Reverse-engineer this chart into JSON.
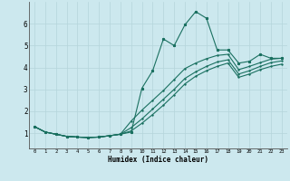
{
  "xlabel": "Humidex (Indice chaleur)",
  "background_color": "#cce8ee",
  "grid_color": "#b5d5db",
  "line_color": "#1a7060",
  "xlim": [
    -0.5,
    23.5
  ],
  "ylim": [
    0.3,
    7.0
  ],
  "xtick_vals": [
    0,
    1,
    2,
    3,
    4,
    5,
    6,
    7,
    8,
    9,
    10,
    11,
    12,
    13,
    14,
    15,
    16,
    17,
    18,
    19,
    20,
    21,
    22,
    23
  ],
  "ytick_vals": [
    1,
    2,
    3,
    4,
    5,
    6
  ],
  "line1_x": [
    0,
    1,
    2,
    3,
    4,
    5,
    6,
    7,
    8,
    9,
    10,
    11,
    12,
    13,
    14,
    15,
    16,
    17,
    18,
    19,
    20,
    21,
    22,
    23
  ],
  "line1_y": [
    1.3,
    1.05,
    0.95,
    0.85,
    0.82,
    0.8,
    0.82,
    0.88,
    0.95,
    1.05,
    3.05,
    3.85,
    5.3,
    5.0,
    5.95,
    6.55,
    6.25,
    4.8,
    4.8,
    4.2,
    4.28,
    4.6,
    4.42,
    4.42
  ],
  "line2_x": [
    0,
    1,
    2,
    3,
    4,
    5,
    6,
    7,
    8,
    9,
    10,
    11,
    12,
    13,
    14,
    15,
    16,
    17,
    18,
    19,
    20,
    21,
    22,
    23
  ],
  "line2_y": [
    1.3,
    1.05,
    0.95,
    0.85,
    0.82,
    0.8,
    0.82,
    0.88,
    0.95,
    1.55,
    2.05,
    2.5,
    2.95,
    3.45,
    3.95,
    4.2,
    4.4,
    4.55,
    4.6,
    3.9,
    4.05,
    4.22,
    4.38,
    4.42
  ],
  "line3_x": [
    0,
    1,
    2,
    3,
    4,
    5,
    6,
    7,
    8,
    9,
    10,
    11,
    12,
    13,
    14,
    15,
    16,
    17,
    18,
    19,
    20,
    21,
    22,
    23
  ],
  "line3_y": [
    1.3,
    1.05,
    0.95,
    0.85,
    0.82,
    0.8,
    0.82,
    0.88,
    0.95,
    1.25,
    1.65,
    2.1,
    2.55,
    3.0,
    3.5,
    3.8,
    4.05,
    4.25,
    4.35,
    3.7,
    3.85,
    4.05,
    4.22,
    4.3
  ],
  "line4_x": [
    0,
    1,
    2,
    3,
    4,
    5,
    6,
    7,
    8,
    9,
    10,
    11,
    12,
    13,
    14,
    15,
    16,
    17,
    18,
    19,
    20,
    21,
    22,
    23
  ],
  "line4_y": [
    1.3,
    1.05,
    0.95,
    0.85,
    0.82,
    0.8,
    0.82,
    0.88,
    0.95,
    1.1,
    1.45,
    1.85,
    2.28,
    2.75,
    3.25,
    3.6,
    3.85,
    4.05,
    4.2,
    3.55,
    3.7,
    3.9,
    4.05,
    4.15
  ]
}
